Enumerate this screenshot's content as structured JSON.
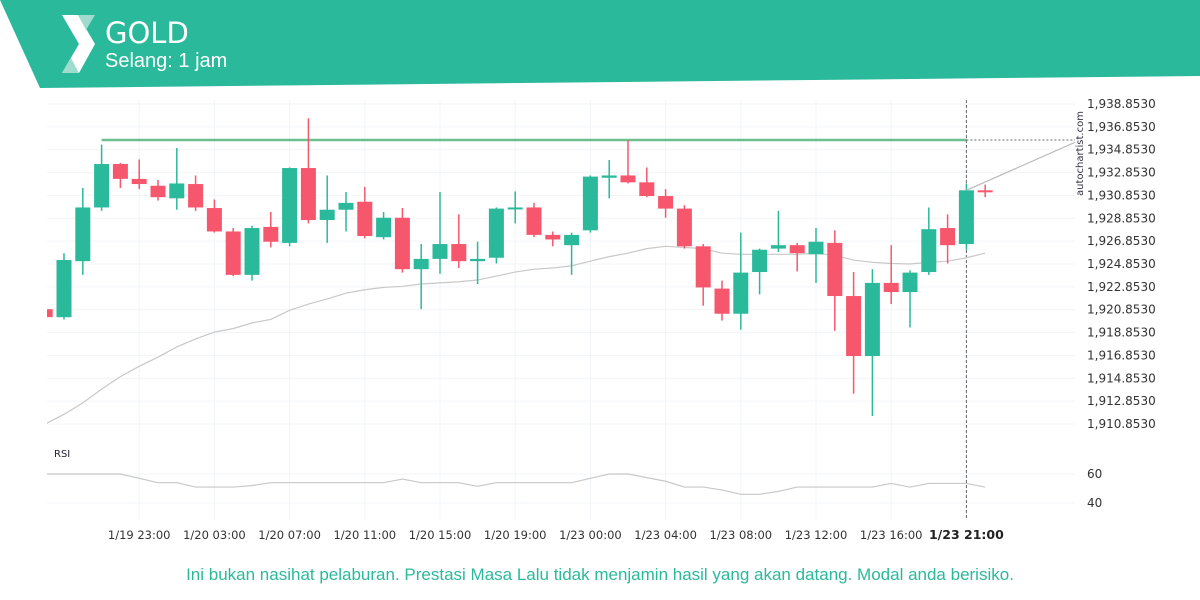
{
  "header": {
    "symbol": "GOLD",
    "interval": "Selang: 1 jam",
    "brand_color": "#2bb99b"
  },
  "watermark": "autochartist.com",
  "footer": {
    "disclaimer": "Ini bukan nasihat pelaburan. Prestasi Masa Lalu tidak menjamin hasil yang akan datang. Modal anda berisiko."
  },
  "chart_data": {
    "type": "candlestick",
    "colors": {
      "up": "#2bb99b",
      "down": "#f7576d",
      "ma": "#c8c8c8",
      "resistance": "#6dbf8f"
    },
    "y_ticks": [
      "1,938.8530",
      "1,936.8530",
      "1,934.8530",
      "1,932.8530",
      "1,930.8530",
      "1,928.8530",
      "1,926.8530",
      "1,924.8530",
      "1,922.8530",
      "1,920.8530",
      "1,918.8530",
      "1,916.8530",
      "1,914.8530",
      "1,912.8530",
      "1,910.8530"
    ],
    "ylim": [
      1910.853,
      1938.853
    ],
    "x_ticks": [
      {
        "label": "1/19 23:00",
        "candle": 5
      },
      {
        "label": "1/20 03:00",
        "candle": 9
      },
      {
        "label": "1/20 07:00",
        "candle": 13
      },
      {
        "label": "1/20 11:00",
        "candle": 17
      },
      {
        "label": "1/20 15:00",
        "candle": 21
      },
      {
        "label": "1/20 19:00",
        "candle": 25
      },
      {
        "label": "1/23 00:00",
        "candle": 29
      },
      {
        "label": "1/23 04:00",
        "candle": 33
      },
      {
        "label": "1/23 08:00",
        "candle": 37
      },
      {
        "label": "1/23 12:00",
        "candle": 41
      },
      {
        "label": "1/23 16:00",
        "candle": 45
      },
      {
        "label": "1/23 21:00",
        "candle": 49,
        "highlight": true
      }
    ],
    "ohlc": [
      [
        1920.9,
        1920.9,
        1920.2,
        1920.2
      ],
      [
        1920.2,
        1925.8,
        1920.0,
        1925.2
      ],
      [
        1925.1,
        1931.5,
        1923.9,
        1929.8
      ],
      [
        1929.8,
        1935.3,
        1929.5,
        1933.6
      ],
      [
        1933.6,
        1933.7,
        1931.5,
        1932.3
      ],
      [
        1932.3,
        1934.0,
        1931.4,
        1931.85
      ],
      [
        1931.7,
        1932.2,
        1930.4,
        1930.7
      ],
      [
        1930.6,
        1935.0,
        1929.6,
        1931.9
      ],
      [
        1931.85,
        1932.6,
        1929.5,
        1929.8
      ],
      [
        1929.75,
        1930.5,
        1927.6,
        1927.7
      ],
      [
        1927.7,
        1928.0,
        1923.8,
        1923.9
      ],
      [
        1923.9,
        1928.2,
        1923.4,
        1928.0
      ],
      [
        1928.1,
        1929.4,
        1926.3,
        1926.8
      ],
      [
        1926.7,
        1933.3,
        1926.4,
        1933.25
      ],
      [
        1933.25,
        1937.6,
        1928.4,
        1928.7
      ],
      [
        1928.7,
        1932.6,
        1926.7,
        1929.6
      ],
      [
        1929.6,
        1931.15,
        1927.7,
        1930.2
      ],
      [
        1930.3,
        1931.6,
        1927.1,
        1927.3
      ],
      [
        1927.2,
        1929.4,
        1927.0,
        1928.9
      ],
      [
        1928.9,
        1929.75,
        1924.1,
        1924.4
      ],
      [
        1924.4,
        1926.6,
        1920.9,
        1925.3
      ],
      [
        1925.3,
        1931.15,
        1924.0,
        1926.6
      ],
      [
        1926.6,
        1929.2,
        1924.5,
        1925.1
      ],
      [
        1925.1,
        1926.8,
        1923.1,
        1925.3
      ],
      [
        1925.4,
        1929.8,
        1924.9,
        1929.7
      ],
      [
        1929.7,
        1931.2,
        1928.4,
        1929.8
      ],
      [
        1929.8,
        1930.2,
        1927.2,
        1927.4
      ],
      [
        1927.4,
        1927.7,
        1926.4,
        1927.0
      ],
      [
        1926.5,
        1927.6,
        1923.9,
        1927.4
      ],
      [
        1927.8,
        1932.6,
        1927.6,
        1932.5
      ],
      [
        1932.4,
        1933.95,
        1930.6,
        1932.6
      ],
      [
        1932.6,
        1935.7,
        1931.9,
        1932.0
      ],
      [
        1932.0,
        1933.3,
        1930.7,
        1930.8
      ],
      [
        1930.8,
        1931.4,
        1928.9,
        1929.7
      ],
      [
        1929.7,
        1930.0,
        1926.2,
        1926.4
      ],
      [
        1926.4,
        1926.6,
        1921.2,
        1922.8
      ],
      [
        1922.7,
        1923.4,
        1919.9,
        1920.5
      ],
      [
        1920.5,
        1927.6,
        1919.1,
        1924.1
      ],
      [
        1924.15,
        1926.2,
        1922.2,
        1926.1
      ],
      [
        1926.2,
        1929.5,
        1925.9,
        1926.5
      ],
      [
        1926.5,
        1926.7,
        1924.2,
        1925.8
      ],
      [
        1925.7,
        1928.0,
        1923.2,
        1926.8
      ],
      [
        1926.7,
        1927.8,
        1919.0,
        1922.05
      ],
      [
        1922.05,
        1924.15,
        1913.5,
        1916.8
      ],
      [
        1916.8,
        1924.4,
        1911.55,
        1923.2
      ],
      [
        1923.2,
        1926.5,
        1921.35,
        1922.4
      ],
      [
        1922.4,
        1924.3,
        1919.3,
        1924.1
      ],
      [
        1924.15,
        1929.8,
        1923.9,
        1927.9
      ],
      [
        1928.0,
        1929.2,
        1924.9,
        1926.5
      ],
      [
        1926.6,
        1931.9,
        1926.1,
        1931.3
      ],
      [
        1931.3,
        1931.8,
        1930.7,
        1931.15
      ]
    ],
    "moving_average": [
      1910.85,
      1911.7,
      1912.7,
      1913.9,
      1915.0,
      1915.9,
      1916.7,
      1917.6,
      1918.3,
      1918.9,
      1919.2,
      1919.7,
      1920.0,
      1920.8,
      1921.35,
      1921.8,
      1922.3,
      1922.6,
      1922.8,
      1922.9,
      1923.1,
      1923.2,
      1923.3,
      1923.45,
      1923.8,
      1924.15,
      1924.4,
      1924.5,
      1924.7,
      1925.1,
      1925.5,
      1925.8,
      1926.2,
      1926.4,
      1926.3,
      1926.2,
      1925.8,
      1925.7,
      1925.7,
      1925.7,
      1925.7,
      1925.8,
      1925.6,
      1925.2,
      1925.0,
      1924.9,
      1924.85,
      1925.0,
      1925.1,
      1925.4,
      1925.8
    ],
    "resistance_level": {
      "value": 1935.7,
      "start_candle": 3,
      "end_candle": 49
    },
    "projection_line": {
      "start_candle": 49,
      "start_value": 1931.3,
      "end_value": 1935.5
    },
    "rsi": {
      "label": "RSI",
      "ticks": [
        "60",
        "40"
      ],
      "tick_values": [
        60,
        40
      ],
      "values": [
        60,
        60,
        60,
        60,
        60,
        57,
        54,
        54,
        51,
        51,
        51,
        52,
        54,
        54,
        54,
        54,
        54,
        54,
        54,
        56.5,
        54,
        54,
        54,
        51.5,
        54,
        54,
        54,
        54,
        54,
        57,
        60,
        60,
        57.5,
        55,
        51,
        51,
        49,
        46,
        46,
        48,
        51,
        51,
        51,
        51,
        51,
        53.5,
        51,
        53.5,
        53.5,
        53.5,
        51
      ]
    }
  }
}
